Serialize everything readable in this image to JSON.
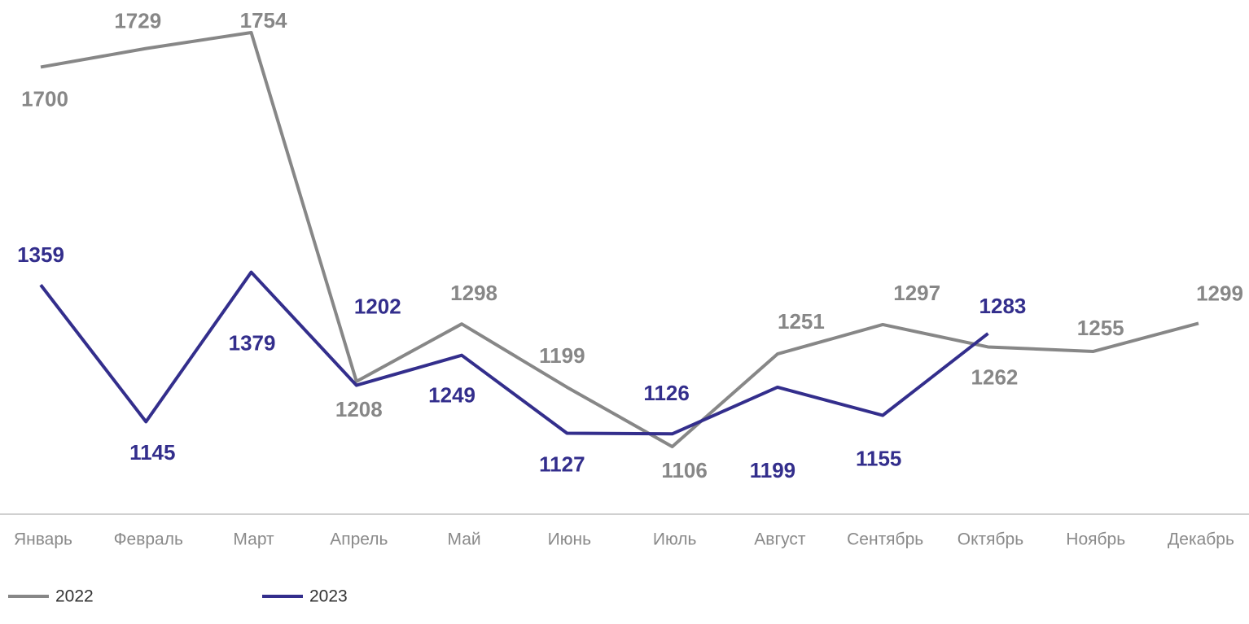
{
  "chart_data": {
    "type": "line",
    "categories": [
      "Январь",
      "Февраль",
      "Март",
      "Апрель",
      "Май",
      "Июнь",
      "Июль",
      "Август",
      "Сентябрь",
      "Октябрь",
      "Ноябрь",
      "Декабрь"
    ],
    "series": [
      {
        "name": "2022",
        "color": "#878787",
        "values": [
          1700,
          1729,
          1754,
          1208,
          1298,
          1199,
          1106,
          1251,
          1297,
          1262,
          1255,
          1299
        ]
      },
      {
        "name": "2023",
        "color": "#332e8c",
        "values": [
          1359,
          1145,
          1379,
          1202,
          1249,
          1127,
          1126,
          1199,
          1155,
          1283,
          null,
          null
        ]
      }
    ]
  }
}
